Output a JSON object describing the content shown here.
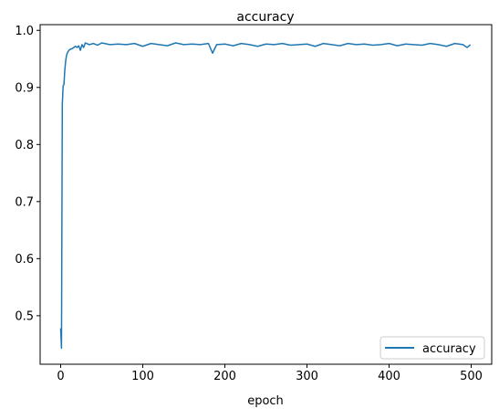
{
  "chart_data": {
    "type": "line",
    "title": "accuracy",
    "xlabel": "epoch",
    "ylabel": "",
    "xlim": [
      -25,
      525
    ],
    "ylim": [
      0.415,
      1.01
    ],
    "xticks": [
      0,
      100,
      200,
      300,
      400,
      500
    ],
    "yticks": [
      0.5,
      0.6,
      0.7,
      0.8,
      0.9,
      1.0
    ],
    "xtick_labels": [
      "0",
      "100",
      "200",
      "300",
      "400",
      "500"
    ],
    "ytick_labels": [
      "0.5",
      "0.6",
      "0.7",
      "0.8",
      "0.9",
      "1.0"
    ],
    "grid": false,
    "legend_position": "lower-right",
    "series": [
      {
        "name": "accuracy",
        "color": "#1f77b4",
        "x": [
          0,
          1,
          2,
          3,
          4,
          5,
          6,
          7,
          8,
          10,
          12,
          14,
          16,
          18,
          20,
          22,
          24,
          26,
          28,
          30,
          35,
          40,
          45,
          50,
          60,
          70,
          80,
          90,
          100,
          110,
          120,
          130,
          140,
          150,
          160,
          170,
          180,
          185,
          190,
          200,
          210,
          220,
          230,
          240,
          250,
          260,
          270,
          280,
          290,
          300,
          310,
          320,
          330,
          340,
          350,
          360,
          370,
          380,
          390,
          400,
          410,
          420,
          430,
          440,
          450,
          460,
          470,
          480,
          490,
          495,
          499
        ],
        "y": [
          0.478,
          0.443,
          0.87,
          0.903,
          0.905,
          0.93,
          0.945,
          0.955,
          0.96,
          0.965,
          0.967,
          0.968,
          0.97,
          0.972,
          0.97,
          0.973,
          0.965,
          0.975,
          0.97,
          0.978,
          0.975,
          0.977,
          0.974,
          0.978,
          0.975,
          0.976,
          0.975,
          0.977,
          0.972,
          0.977,
          0.975,
          0.973,
          0.978,
          0.975,
          0.976,
          0.975,
          0.977,
          0.96,
          0.975,
          0.976,
          0.973,
          0.977,
          0.975,
          0.972,
          0.976,
          0.975,
          0.977,
          0.974,
          0.975,
          0.976,
          0.972,
          0.977,
          0.975,
          0.973,
          0.977,
          0.975,
          0.976,
          0.974,
          0.975,
          0.977,
          0.973,
          0.976,
          0.975,
          0.974,
          0.977,
          0.975,
          0.972,
          0.977,
          0.975,
          0.97,
          0.975
        ]
      }
    ]
  }
}
